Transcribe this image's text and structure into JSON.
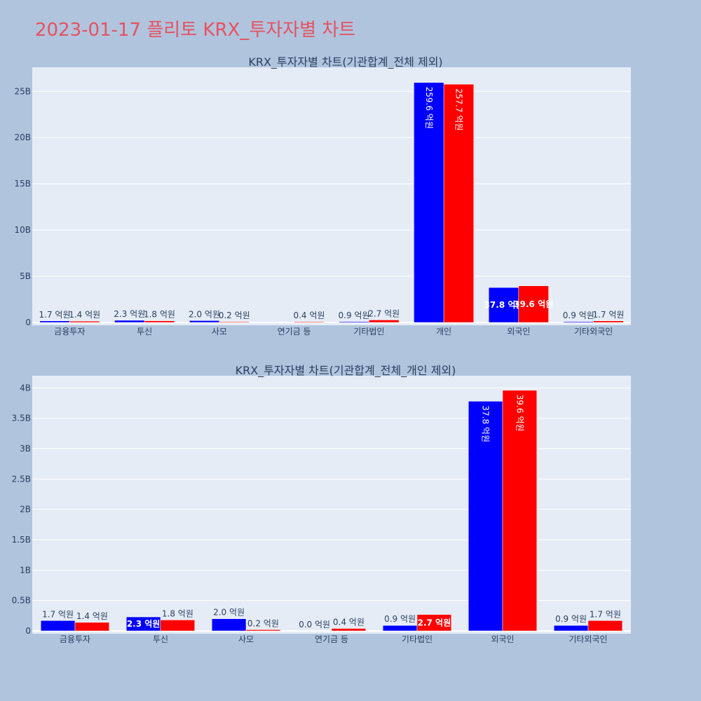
{
  "page": {
    "title": "2023-01-17 플리토 KRX_투자자별 차트"
  },
  "colors": {
    "background": "#b0c4de",
    "plot_bg": "#e5ecf6",
    "buy": "#0000ff",
    "sell": "#ff0000",
    "title": "#e8515f",
    "text": "#2a3f5f"
  },
  "chart_data": [
    {
      "type": "bar",
      "title": "KRX_투자자별 차트(기관합계_전체 제외)",
      "categories": [
        "금융투자",
        "투신",
        "사모",
        "연기금 등",
        "기타법인",
        "개인",
        "외국인",
        "기타외국인"
      ],
      "series": [
        {
          "values": [
            170000000,
            230000000,
            200000000,
            0,
            90000000,
            25960000000,
            3780000000,
            90000000
          ],
          "labels": [
            "1.7 억원",
            "2.3 억원",
            "2.0 억원",
            "",
            "0.9 억원",
            "259.6 억원",
            "37.8 억원",
            "0.9 억원"
          ]
        },
        {
          "values": [
            140000000,
            180000000,
            20000000,
            40000000,
            270000000,
            25770000000,
            3960000000,
            170000000
          ],
          "labels": [
            "1.4 억원",
            "1.8 억원",
            "0.2 억원",
            "0.4 억원",
            "2.7 억원",
            "257.7 억원",
            "39.6 억원",
            "1.7 억원"
          ]
        }
      ],
      "ylim": [
        0,
        27600000000
      ],
      "yticks": [
        0,
        5000000000,
        10000000000,
        15000000000,
        20000000000,
        25000000000
      ],
      "ytick_labels": [
        "0",
        "5B",
        "10B",
        "15B",
        "20B",
        "25B"
      ],
      "grid": true
    },
    {
      "type": "bar",
      "title": "KRX_투자자별 차트(기관합계_전체_개인 제외)",
      "categories": [
        "금융투자",
        "투신",
        "사모",
        "연기금 등",
        "기타법인",
        "외국인",
        "기타외국인"
      ],
      "series": [
        {
          "values": [
            170000000,
            230000000,
            200000000,
            0,
            90000000,
            3780000000,
            90000000
          ],
          "labels": [
            "1.7 억원",
            "2.3 억원",
            "2.0 억원",
            "0.0 억원",
            "0.9 억원",
            "37.8 억원",
            "0.9 억원"
          ]
        },
        {
          "values": [
            140000000,
            180000000,
            20000000,
            40000000,
            270000000,
            3960000000,
            170000000
          ],
          "labels": [
            "1.4 억원",
            "1.8 억원",
            "0.2 억원",
            "0.4 억원",
            "2.7 억원",
            "39.6 억원",
            "1.7 억원"
          ]
        }
      ],
      "ylim": [
        0,
        4200000000
      ],
      "yticks": [
        0,
        500000000,
        1000000000,
        1500000000,
        2000000000,
        2500000000,
        3000000000,
        3500000000,
        4000000000
      ],
      "ytick_labels": [
        "0",
        "0.5B",
        "1B",
        "1.5B",
        "2B",
        "2.5B",
        "3B",
        "3.5B",
        "4B"
      ],
      "grid": true
    }
  ]
}
